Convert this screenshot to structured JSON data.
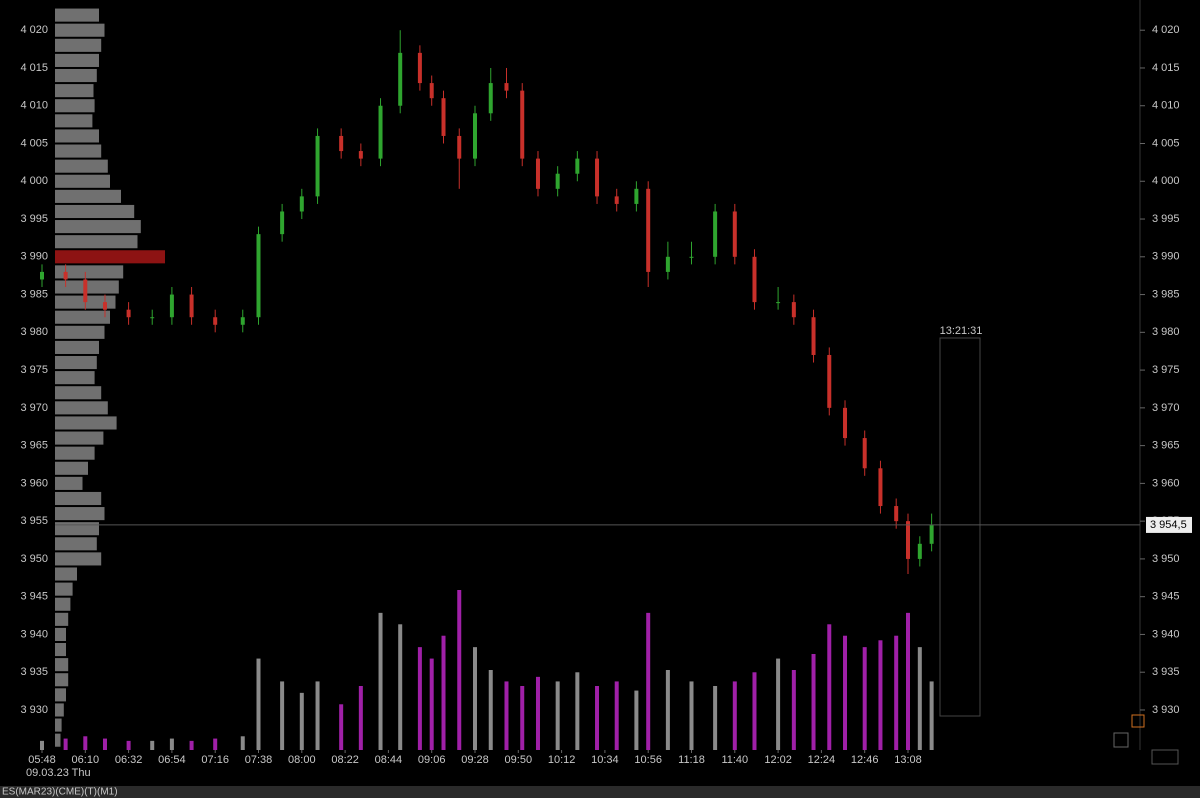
{
  "chart_data": {
    "type": "candlestick",
    "symbol": "ES(MAR23)(CME)(T)(M1)",
    "date": "09.03.23 Thu",
    "clock": "13:21:31",
    "last_price": 3954.5,
    "last_price_label": "3 954,5",
    "up_color": "#2fa52f",
    "down_color": "#c8302a",
    "volume_up_color": "#8a8a8a",
    "volume_down_color": "#a020a8",
    "profile_color": "#8c8c8c",
    "poc_color": "#b01818",
    "ylim": [
      3924.7,
      4024
    ],
    "yticks": [
      {
        "value": 4020,
        "label": "4 020"
      },
      {
        "value": 4015,
        "label": "4 015"
      },
      {
        "value": 4010,
        "label": "4 010"
      },
      {
        "value": 4005,
        "label": "4 005"
      },
      {
        "value": 4000,
        "label": "4 000"
      },
      {
        "value": 3995,
        "label": "3 995"
      },
      {
        "value": 3990,
        "label": "3 990"
      },
      {
        "value": 3985,
        "label": "3 985"
      },
      {
        "value": 3980,
        "label": "3 980"
      },
      {
        "value": 3975,
        "label": "3 975"
      },
      {
        "value": 3970,
        "label": "3 970"
      },
      {
        "value": 3965,
        "label": "3 965"
      },
      {
        "value": 3960,
        "label": "3 960"
      },
      {
        "value": 3955,
        "label": "3 955"
      },
      {
        "value": 3950,
        "label": "3 950"
      },
      {
        "value": 3945,
        "label": "3 945"
      },
      {
        "value": 3940,
        "label": "3 940"
      },
      {
        "value": 3935,
        "label": "3 935"
      },
      {
        "value": 3930,
        "label": "3 930"
      }
    ],
    "xticks": [
      "05:48",
      "06:10",
      "06:32",
      "06:54",
      "07:16",
      "07:38",
      "08:00",
      "08:22",
      "08:44",
      "09:06",
      "09:28",
      "09:50",
      "10:12",
      "10:34",
      "10:56",
      "11:18",
      "11:40",
      "12:02",
      "12:24",
      "12:46",
      "13:08"
    ],
    "x": [
      "05:48",
      "06:00",
      "06:10",
      "06:20",
      "06:32",
      "06:44",
      "06:54",
      "07:04",
      "07:16",
      "07:30",
      "07:38",
      "07:50",
      "08:00",
      "08:08",
      "08:20",
      "08:30",
      "08:40",
      "08:50",
      "09:00",
      "09:06",
      "09:12",
      "09:20",
      "09:28",
      "09:36",
      "09:44",
      "09:52",
      "10:00",
      "10:10",
      "10:20",
      "10:30",
      "10:40",
      "10:50",
      "10:56",
      "11:06",
      "11:18",
      "11:30",
      "11:40",
      "11:50",
      "12:02",
      "12:10",
      "12:20",
      "12:28",
      "12:36",
      "12:46",
      "12:54",
      "13:02",
      "13:08",
      "13:14",
      "13:20"
    ],
    "open": [
      3987,
      3988,
      3987,
      3984,
      3983,
      3982,
      3982,
      3985,
      3982,
      3981,
      3982,
      3993,
      3996,
      3998,
      4006,
      4004,
      4003,
      4010,
      4017,
      4013,
      4011,
      4006,
      4003,
      4009,
      4013,
      4012,
      4003,
      3999,
      4001,
      4003,
      3998,
      3997,
      3999,
      3988,
      3990,
      3990,
      3996,
      3990,
      3984,
      3984,
      3982,
      3977,
      3970,
      3966,
      3962,
      3957,
      3955,
      3950,
      3952
    ],
    "high": [
      3989,
      3989,
      3988,
      3985,
      3984,
      3983,
      3986,
      3986,
      3983,
      3983,
      3994,
      3997,
      3999,
      4007,
      4007,
      4005,
      4011,
      4020,
      4018,
      4014,
      4012,
      4007,
      4010,
      4015,
      4015,
      4013,
      4004,
      4002,
      4004,
      4004,
      3999,
      4000,
      4000,
      3992,
      3992,
      3997,
      3997,
      3991,
      3986,
      3985,
      3983,
      3978,
      3971,
      3967,
      3963,
      3958,
      3956,
      3953,
      3956
    ],
    "low": [
      3986,
      3986,
      3983,
      3982,
      3981,
      3981,
      3981,
      3981,
      3980,
      3980,
      3981,
      3992,
      3995,
      3997,
      4003,
      4002,
      4002,
      4009,
      4012,
      4010,
      4005,
      3999,
      4002,
      4008,
      4011,
      4002,
      3998,
      3998,
      4000,
      3997,
      3996,
      3996,
      3986,
      3987,
      3989,
      3989,
      3989,
      3983,
      3983,
      3981,
      3976,
      3969,
      3965,
      3961,
      3956,
      3954,
      3948,
      3949,
      3951
    ],
    "close": [
      3988,
      3987,
      3984,
      3983,
      3982,
      3982,
      3985,
      3982,
      3981,
      3982,
      3993,
      3996,
      3998,
      4006,
      4004,
      4003,
      4010,
      4017,
      4013,
      4011,
      4006,
      4003,
      4009,
      4013,
      4012,
      4003,
      3999,
      4001,
      4003,
      3998,
      3997,
      3999,
      3988,
      3990,
      3990,
      3996,
      3990,
      3984,
      3984,
      3982,
      3977,
      3970,
      3966,
      3962,
      3957,
      3955,
      3950,
      3952,
      3954.5
    ],
    "volume": [
      4,
      5,
      6,
      5,
      4,
      4,
      5,
      4,
      5,
      6,
      40,
      30,
      25,
      30,
      20,
      28,
      60,
      55,
      45,
      40,
      50,
      70,
      45,
      35,
      30,
      28,
      32,
      30,
      34,
      28,
      30,
      26,
      60,
      35,
      30,
      28,
      30,
      34,
      40,
      35,
      42,
      55,
      50,
      45,
      48,
      50,
      60,
      45,
      30
    ],
    "profile": {
      "prices": [
        4022,
        4020,
        4018,
        4016,
        4014,
        4012,
        4010,
        4008,
        4006,
        4004,
        4002,
        4000,
        3998,
        3996,
        3994,
        3992,
        3990,
        3988,
        3986,
        3984,
        3982,
        3980,
        3978,
        3976,
        3974,
        3972,
        3970,
        3968,
        3966,
        3964,
        3962,
        3960,
        3958,
        3956,
        3954,
        3952,
        3950,
        3948,
        3946,
        3944,
        3942,
        3940,
        3938,
        3936,
        3934,
        3932,
        3930,
        3928,
        3926
      ],
      "values": [
        40,
        45,
        42,
        40,
        38,
        35,
        36,
        34,
        40,
        42,
        48,
        50,
        60,
        72,
        78,
        75,
        100,
        62,
        58,
        55,
        50,
        45,
        40,
        38,
        36,
        42,
        48,
        56,
        44,
        36,
        30,
        25,
        42,
        45,
        40,
        38,
        42,
        20,
        16,
        14,
        12,
        10,
        10,
        12,
        12,
        10,
        8,
        6,
        5
      ]
    }
  }
}
